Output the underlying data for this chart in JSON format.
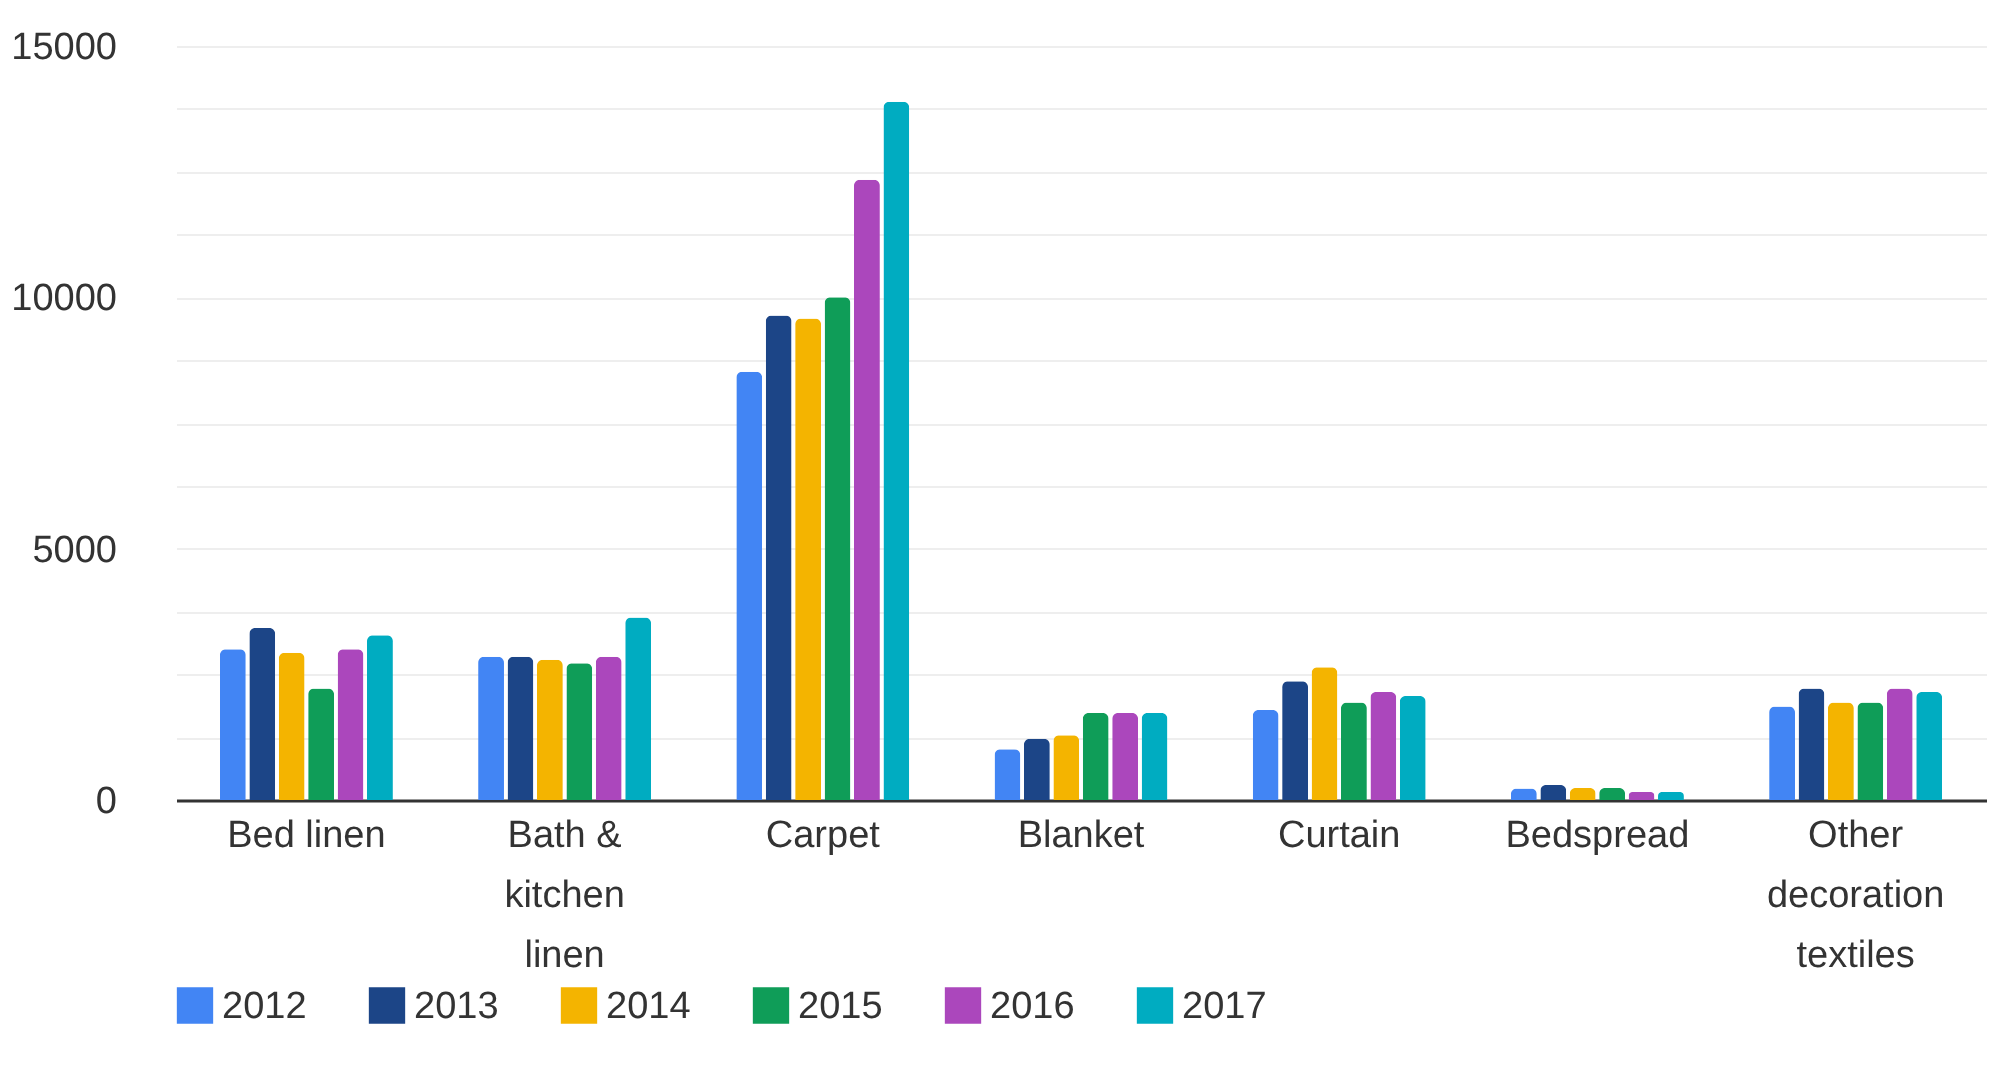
{
  "chart_data": {
    "type": "bar",
    "categories": [
      "Bed linen",
      "Bath & kitchen linen",
      "Carpet",
      "Blanket",
      "Curtain",
      "Bedspread",
      "Other decoration textiles"
    ],
    "series": [
      {
        "name": "2012",
        "color": "#4285f4",
        "values": [
          3000,
          2850,
          8520,
          1010,
          1790,
          230,
          1860
        ]
      },
      {
        "name": "2013",
        "color": "#1c4587",
        "values": [
          3420,
          2850,
          9640,
          1220,
          2360,
          300,
          2220
        ]
      },
      {
        "name": "2014",
        "color": "#f4b400",
        "values": [
          2930,
          2790,
          9580,
          1290,
          2640,
          240,
          1940
        ]
      },
      {
        "name": "2015",
        "color": "#0f9d58",
        "values": [
          2220,
          2720,
          10000,
          1730,
          1940,
          240,
          1940
        ]
      },
      {
        "name": "2016",
        "color": "#ab47bc",
        "values": [
          3000,
          2850,
          12340,
          1730,
          2150,
          160,
          2220
        ]
      },
      {
        "name": "2017",
        "color": "#00acc1",
        "values": [
          3280,
          3630,
          13890,
          1730,
          2070,
          160,
          2150
        ]
      }
    ],
    "ylim": [
      0,
      15000
    ],
    "yticks": [
      0,
      {
        "value": 1250,
        "label": null
      },
      {
        "value": 2500,
        "label": null
      },
      {
        "value": 3750,
        "label": null
      },
      5000,
      {
        "value": 6250,
        "label": null
      },
      {
        "value": 7500,
        "label": null
      },
      {
        "value": 8750,
        "label": null
      },
      10000,
      {
        "value": 11250,
        "label": null
      },
      {
        "value": 12500,
        "label": null
      },
      {
        "value": 13750,
        "label": null
      },
      15000
    ],
    "grid": true,
    "legend": "bottom"
  }
}
